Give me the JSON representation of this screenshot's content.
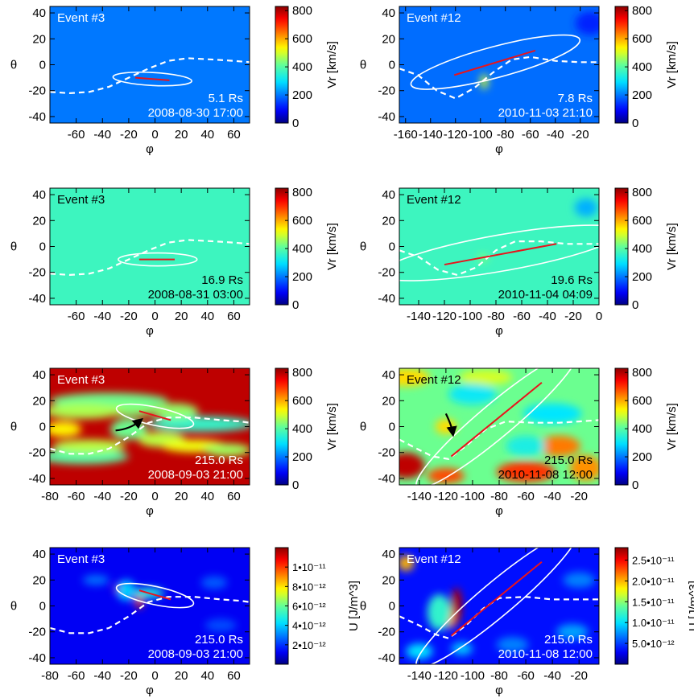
{
  "figure": {
    "ylabel": "θ",
    "xlabel": "φ",
    "colorbar_vr_label": "Vr [km/s]",
    "colorbar_u_label": "U [J/m^3]"
  },
  "chart_data": [
    {
      "type": "heatmap",
      "event": "Event #3",
      "distance": "5.1 Rs",
      "date": "2008-08-30 17:00",
      "xlim": [
        -80,
        72
      ],
      "xticks": [
        -60,
        -40,
        -20,
        0,
        20,
        40,
        60
      ],
      "ylim": [
        -45,
        45
      ],
      "yticks": [
        -40,
        -20,
        0,
        20,
        40
      ],
      "colorbar": {
        "label": "Vr [km/s]",
        "min": 0,
        "max": 830,
        "ticks": [
          "800",
          "600",
          "400",
          "200",
          "0"
        ],
        "tick_values": [
          800,
          600,
          400,
          200,
          0
        ]
      },
      "background_value": 200,
      "text_color": "#ffffff",
      "ellipse": {
        "center": [
          -2,
          -11
        ],
        "width": 30,
        "height": 5,
        "angle": -3
      },
      "cme_axis": [
        [
          -15,
          -10
        ],
        [
          11,
          -12
        ]
      ],
      "current_sheet": [
        [
          -80,
          -21
        ],
        [
          -65,
          -22
        ],
        [
          -50,
          -21
        ],
        [
          -35,
          -17
        ],
        [
          -20,
          -10
        ],
        [
          -5,
          -3
        ],
        [
          10,
          3
        ],
        [
          25,
          5
        ],
        [
          45,
          4
        ],
        [
          60,
          3
        ],
        [
          72,
          2
        ]
      ],
      "features": []
    },
    {
      "type": "heatmap",
      "event": "Event #12",
      "distance": "7.8 Rs",
      "date": "2010-11-03 21:10",
      "xlim": [
        -165,
        -5
      ],
      "xticks": [
        -160,
        -140,
        -120,
        -100,
        -80,
        -60,
        -40,
        -20
      ],
      "ylim": [
        -45,
        45
      ],
      "yticks": [
        -40,
        -20,
        0,
        20,
        40
      ],
      "colorbar": {
        "label": "Vr [km/s]",
        "min": 0,
        "max": 830,
        "ticks": [
          "800",
          "600",
          "400",
          "200",
          "0"
        ],
        "tick_values": [
          800,
          600,
          400,
          200,
          0
        ]
      },
      "background_value": 190,
      "text_color": "#ffffff",
      "ellipse": {
        "center": [
          -88,
          2
        ],
        "width": 70,
        "height": 12,
        "angle": 15
      },
      "cme_axis": [
        [
          -121,
          -8
        ],
        [
          -56,
          11
        ]
      ],
      "current_sheet": [
        [
          -165,
          -3
        ],
        [
          -150,
          -8
        ],
        [
          -135,
          -20
        ],
        [
          -120,
          -26
        ],
        [
          -105,
          -18
        ],
        [
          -90,
          -6
        ],
        [
          -75,
          4
        ],
        [
          -60,
          6
        ],
        [
          -40,
          3
        ],
        [
          -20,
          2
        ],
        [
          -5,
          2
        ]
      ],
      "features": [
        {
          "x": -97,
          "y": -13,
          "rx": 3,
          "ry": 6,
          "value": 500
        },
        {
          "x": -12,
          "y": 32,
          "rx": 12,
          "ry": 9,
          "value": 120
        }
      ]
    },
    {
      "type": "heatmap",
      "event": "Event #3",
      "distance": "16.9 Rs",
      "date": "2008-08-31 03:00",
      "xlim": [
        -80,
        72
      ],
      "xticks": [
        -60,
        -40,
        -20,
        0,
        20,
        40,
        60
      ],
      "ylim": [
        -45,
        45
      ],
      "yticks": [
        -40,
        -20,
        0,
        20,
        40
      ],
      "colorbar": {
        "label": "Vr [km/s]",
        "min": 0,
        "max": 830,
        "ticks": [
          "800",
          "600",
          "400",
          "200",
          "0"
        ],
        "tick_values": [
          800,
          600,
          400,
          200,
          0
        ]
      },
      "background_value": 370,
      "text_color": "#000000",
      "ellipse": {
        "center": [
          2,
          -10
        ],
        "width": 30,
        "height": 5,
        "angle": 0
      },
      "cme_axis": [
        [
          -12,
          -10
        ],
        [
          15,
          -10
        ]
      ],
      "current_sheet": [
        [
          -80,
          -21
        ],
        [
          -65,
          -22
        ],
        [
          -50,
          -21
        ],
        [
          -35,
          -17
        ],
        [
          -20,
          -10
        ],
        [
          -5,
          -3
        ],
        [
          10,
          3
        ],
        [
          25,
          5
        ],
        [
          45,
          4
        ],
        [
          60,
          3
        ],
        [
          72,
          2
        ]
      ],
      "features": []
    },
    {
      "type": "heatmap",
      "event": "Event #12",
      "distance": "19.6 Rs",
      "date": "2010-11-04 04:09",
      "xlim": [
        -155,
        0
      ],
      "xticks": [
        -140,
        -120,
        -100,
        -80,
        -60,
        -40,
        -20,
        0
      ],
      "ylim": [
        -45,
        45
      ],
      "yticks": [
        -40,
        -20,
        0,
        20,
        40
      ],
      "colorbar": {
        "label": "Vr [km/s]",
        "min": 0,
        "max": 830,
        "ticks": [
          "800",
          "600",
          "400",
          "200",
          "0"
        ],
        "tick_values": [
          800,
          600,
          400,
          200,
          0
        ]
      },
      "background_value": 370,
      "text_color": "#000000",
      "ellipse": {
        "center": [
          -76,
          -5
        ],
        "width": 95,
        "height": 14,
        "angle": 10
      },
      "cme_axis": [
        [
          -120,
          -14
        ],
        [
          -33,
          2
        ]
      ],
      "current_sheet": [
        [
          -155,
          -3
        ],
        [
          -140,
          -8
        ],
        [
          -125,
          -18
        ],
        [
          -110,
          -22
        ],
        [
          -95,
          -16
        ],
        [
          -80,
          -3
        ],
        [
          -65,
          4
        ],
        [
          -45,
          4
        ],
        [
          -25,
          2
        ],
        [
          -10,
          2
        ],
        [
          0,
          2
        ]
      ],
      "features": [
        {
          "x": -90,
          "y": -9,
          "rx": 4,
          "ry": 3,
          "value": 440
        },
        {
          "x": -10,
          "y": 30,
          "rx": 9,
          "ry": 7,
          "value": 250
        }
      ]
    },
    {
      "type": "heatmap",
      "event": "Event #3",
      "distance": "215.0 Rs",
      "date": "2008-09-03 21:00",
      "xlim": [
        -80,
        72
      ],
      "xticks": [
        -80,
        -60,
        -40,
        -20,
        0,
        20,
        40,
        60
      ],
      "ylim": [
        -45,
        45
      ],
      "yticks": [
        -40,
        -20,
        0,
        20,
        40
      ],
      "colorbar": {
        "label": "Vr [km/s]",
        "min": 0,
        "max": 830,
        "ticks": [
          "800",
          "600",
          "400",
          "200",
          "0"
        ],
        "tick_values": [
          800,
          600,
          400,
          200,
          0
        ]
      },
      "background_value": 790,
      "text_color": "#ffffff",
      "ellipse": {
        "center": [
          0,
          8
        ],
        "width": 30,
        "height": 7,
        "angle": -12
      },
      "cme_axis": [
        [
          -12,
          12
        ],
        [
          12,
          5
        ]
      ],
      "current_sheet": [
        [
          -80,
          -17
        ],
        [
          -65,
          -21
        ],
        [
          -50,
          -21
        ],
        [
          -35,
          -17
        ],
        [
          -20,
          -8
        ],
        [
          -5,
          3
        ],
        [
          10,
          7
        ],
        [
          30,
          7
        ],
        [
          50,
          5
        ],
        [
          65,
          4
        ],
        [
          72,
          3
        ]
      ],
      "arrow": [
        [
          -30,
          -3
        ],
        [
          -12,
          4
        ]
      ],
      "features": [
        {
          "x": -35,
          "y": 20,
          "rx": 45,
          "ry": 6,
          "value": 420
        },
        {
          "x": -20,
          "y": 13,
          "rx": 22,
          "ry": 5,
          "value": 440
        },
        {
          "x": -55,
          "y": 12,
          "rx": 30,
          "ry": 6,
          "value": 470
        },
        {
          "x": -55,
          "y": -23,
          "rx": 35,
          "ry": 6,
          "value": 400
        },
        {
          "x": -50,
          "y": -15,
          "rx": 28,
          "ry": 5,
          "value": 480
        },
        {
          "x": -70,
          "y": -2,
          "rx": 14,
          "ry": 6,
          "value": 540
        },
        {
          "x": -20,
          "y": -2,
          "rx": 14,
          "ry": 8,
          "value": 420
        },
        {
          "x": 35,
          "y": 2,
          "rx": 40,
          "ry": 6,
          "value": 360
        },
        {
          "x": 15,
          "y": 12,
          "rx": 18,
          "ry": 6,
          "value": 450
        },
        {
          "x": 5,
          "y": -10,
          "rx": 18,
          "ry": 6,
          "value": 480
        },
        {
          "x": 30,
          "y": -15,
          "rx": 25,
          "ry": 5,
          "value": 520
        },
        {
          "x": 55,
          "y": -18,
          "rx": 18,
          "ry": 5,
          "value": 460
        }
      ]
    },
    {
      "type": "heatmap",
      "event": "Event #12",
      "distance": "215.0 Rs",
      "date": "2010-11-08 12:00",
      "xlim": [
        -155,
        -5
      ],
      "xticks": [
        -140,
        -120,
        -100,
        -80,
        -60,
        -40,
        -20
      ],
      "ylim": [
        -45,
        45
      ],
      "yticks": [
        -40,
        -20,
        0,
        20,
        40
      ],
      "colorbar": {
        "label": "Vr [km/s]",
        "min": 0,
        "max": 830,
        "ticks": [
          "800",
          "600",
          "400",
          "200",
          "0"
        ],
        "tick_values": [
          800,
          600,
          400,
          200,
          0
        ]
      },
      "background_value": 420,
      "text_color": "#000000",
      "ellipse": {
        "center": [
          -82,
          5
        ],
        "width": 78,
        "height": 13,
        "angle": 40
      },
      "cme_axis": [
        [
          -116,
          -23
        ],
        [
          -48,
          34
        ]
      ],
      "current_sheet": [
        [
          -155,
          -10
        ],
        [
          -140,
          -18
        ],
        [
          -130,
          -23
        ],
        [
          -118,
          -25
        ],
        [
          -105,
          -15
        ],
        [
          -90,
          -2
        ],
        [
          -75,
          4
        ],
        [
          -55,
          3
        ],
        [
          -35,
          3
        ],
        [
          -20,
          4
        ],
        [
          -5,
          5
        ]
      ],
      "arrow": [
        [
          -120,
          10
        ],
        [
          -115,
          -4
        ]
      ],
      "features": [
        {
          "x": -150,
          "y": -30,
          "rx": 14,
          "ry": 10,
          "value": 790
        },
        {
          "x": -120,
          "y": -38,
          "rx": 14,
          "ry": 6,
          "value": 680
        },
        {
          "x": -60,
          "y": -35,
          "rx": 22,
          "ry": 8,
          "value": 700
        },
        {
          "x": -35,
          "y": -15,
          "rx": 16,
          "ry": 8,
          "value": 640
        },
        {
          "x": -15,
          "y": -32,
          "rx": 12,
          "ry": 10,
          "value": 620
        },
        {
          "x": -150,
          "y": 38,
          "rx": 18,
          "ry": 7,
          "value": 560
        },
        {
          "x": -90,
          "y": 38,
          "rx": 20,
          "ry": 6,
          "value": 500
        },
        {
          "x": -120,
          "y": 0,
          "rx": 8,
          "ry": 6,
          "value": 560
        },
        {
          "x": -100,
          "y": 25,
          "rx": 18,
          "ry": 8,
          "value": 310
        },
        {
          "x": -40,
          "y": 10,
          "rx": 22,
          "ry": 8,
          "value": 300
        },
        {
          "x": -60,
          "y": -15,
          "rx": 15,
          "ry": 8,
          "value": 330
        }
      ]
    },
    {
      "type": "heatmap",
      "event": "Event #3",
      "distance": "215.0 Rs",
      "date": "2008-09-03 21:00",
      "xlim": [
        -80,
        72
      ],
      "xticks": [
        -80,
        -60,
        -40,
        -20,
        0,
        20,
        40,
        60
      ],
      "ylim": [
        -45,
        45
      ],
      "yticks": [
        -40,
        -20,
        0,
        20,
        40
      ],
      "colorbar": {
        "label": "U [J/m^3]",
        "min": 0,
        "max": 1.2e-11,
        "ticks": [
          "1•10⁻¹¹",
          "8•10⁻¹²",
          "6•10⁻¹²",
          "4•10⁻¹²",
          "2•10⁻¹²"
        ],
        "tick_values": [
          1e-11,
          8e-12,
          6e-12,
          4e-12,
          2e-12
        ]
      },
      "background_value": 1.2e-12,
      "text_color": "#ffffff",
      "ellipse": {
        "center": [
          0,
          8
        ],
        "width": 30,
        "height": 7,
        "angle": -12
      },
      "cme_axis": [
        [
          -12,
          12
        ],
        [
          12,
          5
        ]
      ],
      "current_sheet": [
        [
          -80,
          -17
        ],
        [
          -65,
          -21
        ],
        [
          -50,
          -21
        ],
        [
          -35,
          -17
        ],
        [
          -20,
          -8
        ],
        [
          -5,
          3
        ],
        [
          10,
          7
        ],
        [
          30,
          7
        ],
        [
          50,
          5
        ],
        [
          65,
          4
        ],
        [
          72,
          3
        ]
      ],
      "features": [
        {
          "x": -28,
          "y": 13,
          "rx": 3,
          "ry": 3,
          "value": 1.1e-11
        },
        {
          "x": -12,
          "y": 3,
          "rx": 3,
          "ry": 5,
          "value": 1e-11
        },
        {
          "x": -5,
          "y": 10,
          "rx": 12,
          "ry": 4,
          "value": 5e-12
        },
        {
          "x": -22,
          "y": 12,
          "rx": 7,
          "ry": 8,
          "value": 4e-12
        },
        {
          "x": -45,
          "y": 20,
          "rx": 10,
          "ry": 4,
          "value": 2.8e-12
        },
        {
          "x": 45,
          "y": 18,
          "rx": 10,
          "ry": 5,
          "value": 2.5e-12
        },
        {
          "x": 50,
          "y": -15,
          "rx": 12,
          "ry": 5,
          "value": 2.3e-12
        }
      ]
    },
    {
      "type": "heatmap",
      "event": "Event #12",
      "distance": "215.0 Rs",
      "date": "2010-11-08 12:00",
      "xlim": [
        -155,
        -5
      ],
      "xticks": [
        -140,
        -120,
        -100,
        -80,
        -60,
        -40,
        -20
      ],
      "ylim": [
        -45,
        45
      ],
      "yticks": [
        -40,
        -20,
        0,
        20,
        40
      ],
      "colorbar": {
        "label": "U [J/m^3]",
        "min": 0,
        "max": 2.8e-11,
        "ticks": [
          "2.5•10⁻¹¹",
          "2.0•10⁻¹¹",
          "1.5•10⁻¹¹",
          "1.0•10⁻¹¹",
          "5.0•10⁻¹²"
        ],
        "tick_values": [
          2.5e-11,
          2e-11,
          1.5e-11,
          1e-11,
          5e-12
        ]
      },
      "background_value": 3.5e-12,
      "text_color": "#ffffff",
      "ellipse": {
        "center": [
          -82,
          5
        ],
        "width": 78,
        "height": 13,
        "angle": 40
      },
      "cme_axis": [
        [
          -116,
          -23
        ],
        [
          -48,
          34
        ]
      ],
      "current_sheet": [
        [
          -155,
          -8
        ],
        [
          -140,
          -15
        ],
        [
          -128,
          -22
        ],
        [
          -118,
          -25
        ],
        [
          -105,
          -15
        ],
        [
          -92,
          -2
        ],
        [
          -80,
          6
        ],
        [
          -60,
          7
        ],
        [
          -40,
          5
        ],
        [
          -20,
          5
        ],
        [
          -5,
          5
        ]
      ],
      "features": [
        {
          "x": -112,
          "y": 0,
          "rx": 4,
          "ry": 14,
          "value": 2.7e-11
        },
        {
          "x": -116,
          "y": -10,
          "rx": 3,
          "ry": 8,
          "value": 2.2e-11
        },
        {
          "x": -125,
          "y": -5,
          "rx": 9,
          "ry": 14,
          "value": 1.2e-11
        },
        {
          "x": -150,
          "y": 33,
          "rx": 6,
          "ry": 6,
          "value": 2e-11
        },
        {
          "x": -140,
          "y": -35,
          "rx": 10,
          "ry": 6,
          "value": 1e-11
        },
        {
          "x": -108,
          "y": -33,
          "rx": 8,
          "ry": 5,
          "value": 9e-12
        },
        {
          "x": -70,
          "y": -30,
          "rx": 12,
          "ry": 6,
          "value": 7e-12
        },
        {
          "x": -25,
          "y": -20,
          "rx": 12,
          "ry": 6,
          "value": 8e-12
        },
        {
          "x": -20,
          "y": 20,
          "rx": 12,
          "ry": 6,
          "value": 7e-12
        }
      ]
    }
  ]
}
